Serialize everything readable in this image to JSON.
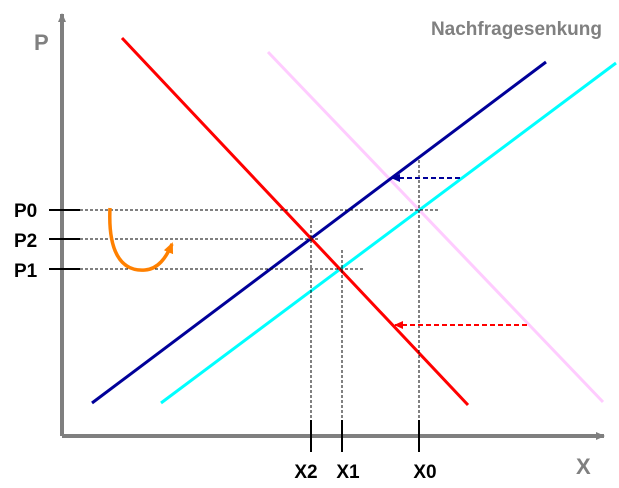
{
  "title": "Nachfragesenkung",
  "axes": {
    "y_label": "P",
    "x_label": "X"
  },
  "price_labels": {
    "p0": "P0",
    "p2": "P2",
    "p1": "P1"
  },
  "quantity_labels": {
    "x2": "X2",
    "x1": "X1",
    "x0": "X0"
  },
  "colors": {
    "axis": "#7f7f7f",
    "demand_curve": "#ff0000",
    "supply_original": "#000099",
    "supply_shifted": "#00ffff",
    "demand_shifted": "#ffccff",
    "arrow_blue": "#000099",
    "arrow_red": "#ff0000",
    "curved_arrow": "#ff8000",
    "title": "#808080",
    "guide_line": "#000000"
  }
}
